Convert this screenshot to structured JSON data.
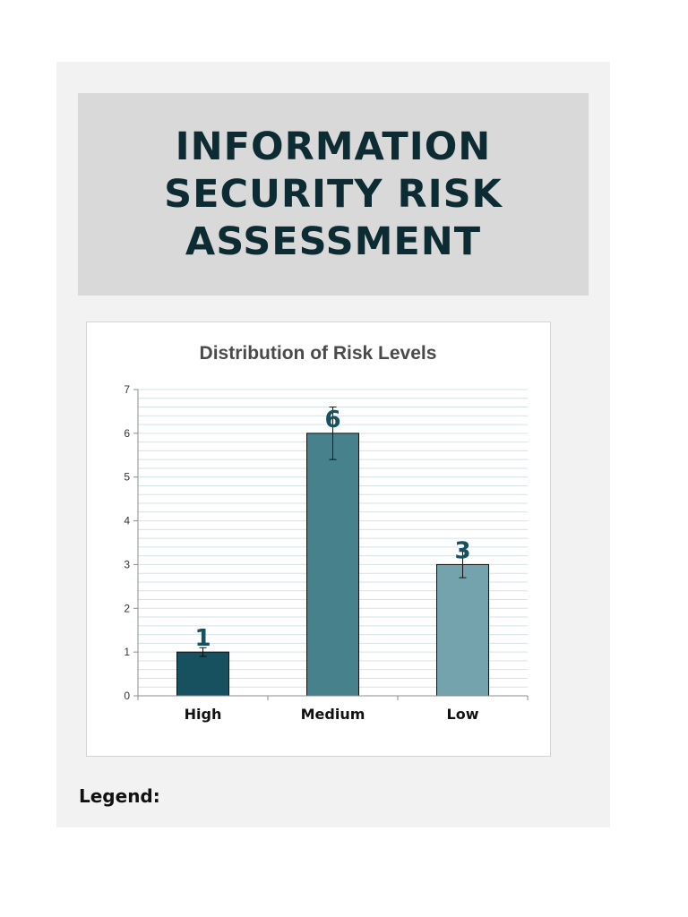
{
  "header": {
    "title": "INFORMATION SECURITY RISK ASSESSMENT"
  },
  "legend": {
    "label": "Legend:"
  },
  "colors": {
    "title_text": "#0d2b33",
    "high": "#17505f",
    "medium": "#46818c",
    "low": "#74a3ae",
    "data_label": "#17505f",
    "gridline": "#d5e3e6"
  },
  "chart_data": {
    "type": "bar",
    "title": "Distribution of Risk Levels",
    "xlabel": "",
    "ylabel": "",
    "categories": [
      "High",
      "Medium",
      "Low"
    ],
    "values": [
      1,
      6,
      3
    ],
    "error_bars": [
      0.1,
      0.6,
      0.3
    ],
    "data_labels": [
      "1",
      "6",
      "3"
    ],
    "ylim": [
      0,
      7
    ],
    "yticks": [
      0,
      1,
      2,
      3,
      4,
      5,
      6,
      7
    ],
    "grid": true,
    "legend": "none"
  }
}
